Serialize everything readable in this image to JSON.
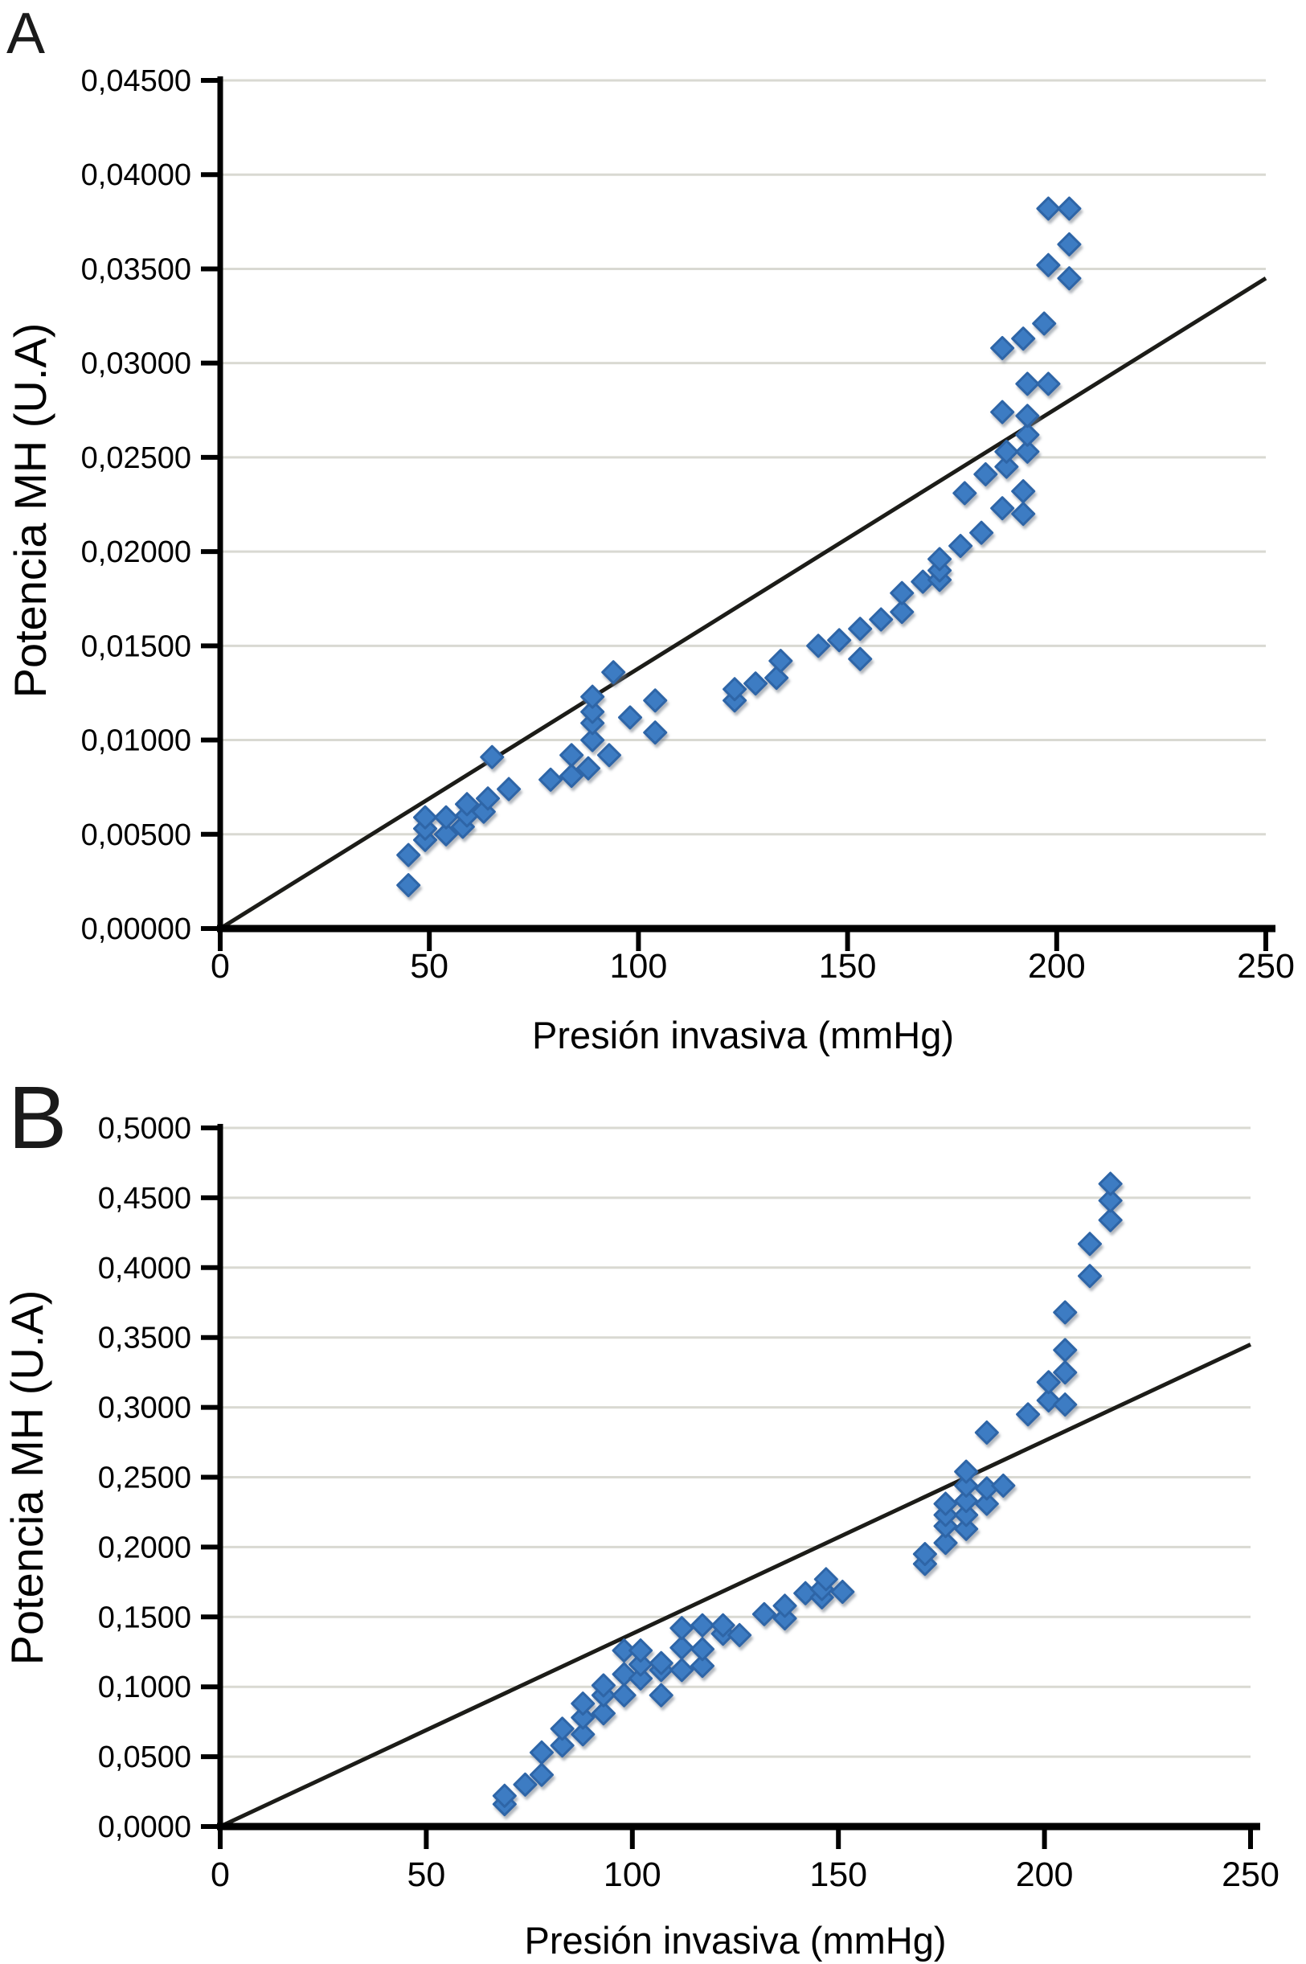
{
  "figure": {
    "background": "#ffffff",
    "panels": [
      {
        "label": "A"
      },
      {
        "label": "B"
      }
    ]
  },
  "chart_data": [
    {
      "type": "scatter",
      "panel": "A",
      "title": "",
      "xlabel": "Presión invasiva (mmHg)",
      "ylabel": "Potencia MH (U.A)",
      "xlim": [
        0,
        250
      ],
      "ylim": [
        0,
        0.045
      ],
      "x_ticks": [
        0,
        50,
        100,
        150,
        200,
        250
      ],
      "x_tick_labels": [
        "0",
        "50",
        "100",
        "150",
        "200",
        "250"
      ],
      "y_ticks": [
        0,
        0.005,
        0.01,
        0.015,
        0.02,
        0.025,
        0.03,
        0.035,
        0.04,
        0.045
      ],
      "y_tick_labels": [
        "0,00000",
        "0,00500",
        "0,01000",
        "0,01500",
        "0,02000",
        "0,02500",
        "0,03000",
        "0,03500",
        "0,04000",
        "0,04500"
      ],
      "grid": true,
      "legend_position": "none",
      "grid_color": "#d9d9d2",
      "axis_color": "#000000",
      "marker": {
        "shape": "diamond",
        "fill": "#3d7cc3",
        "edge": "#2d65a7",
        "shadow": "#707a86"
      },
      "trend_line": {
        "x": [
          0,
          250
        ],
        "y": [
          0,
          0.0345
        ],
        "color": "#1c1c18"
      },
      "points": [
        [
          45,
          0.0023
        ],
        [
          45,
          0.0039
        ],
        [
          49,
          0.0047
        ],
        [
          49,
          0.0053
        ],
        [
          49,
          0.0059
        ],
        [
          54,
          0.005
        ],
        [
          54,
          0.0059
        ],
        [
          58,
          0.0054
        ],
        [
          59,
          0.006
        ],
        [
          59,
          0.0066
        ],
        [
          63,
          0.0062
        ],
        [
          64,
          0.0069
        ],
        [
          65,
          0.0091
        ],
        [
          69,
          0.0074
        ],
        [
          79,
          0.0079
        ],
        [
          84,
          0.0081
        ],
        [
          84,
          0.0092
        ],
        [
          88,
          0.0085
        ],
        [
          89,
          0.01
        ],
        [
          89,
          0.0109
        ],
        [
          89,
          0.0115
        ],
        [
          89,
          0.0123
        ],
        [
          93,
          0.0092
        ],
        [
          94,
          0.0136
        ],
        [
          98,
          0.0112
        ],
        [
          104,
          0.0104
        ],
        [
          104,
          0.0121
        ],
        [
          123,
          0.0121
        ],
        [
          123,
          0.0127
        ],
        [
          128,
          0.013
        ],
        [
          133,
          0.0133
        ],
        [
          134,
          0.0142
        ],
        [
          143,
          0.015
        ],
        [
          148,
          0.0153
        ],
        [
          153,
          0.0143
        ],
        [
          153,
          0.0159
        ],
        [
          158,
          0.0164
        ],
        [
          163,
          0.0168
        ],
        [
          163,
          0.0178
        ],
        [
          168,
          0.0184
        ],
        [
          172,
          0.0185
        ],
        [
          172,
          0.019
        ],
        [
          172,
          0.0196
        ],
        [
          177,
          0.0203
        ],
        [
          178,
          0.0231
        ],
        [
          182,
          0.021
        ],
        [
          183,
          0.0241
        ],
        [
          187,
          0.0223
        ],
        [
          188,
          0.0245
        ],
        [
          188,
          0.0253
        ],
        [
          187,
          0.0274
        ],
        [
          187,
          0.0308
        ],
        [
          192,
          0.022
        ],
        [
          192,
          0.0232
        ],
        [
          193,
          0.0253
        ],
        [
          193,
          0.0262
        ],
        [
          193,
          0.0272
        ],
        [
          193,
          0.0289
        ],
        [
          192,
          0.0313
        ],
        [
          197,
          0.0321
        ],
        [
          198,
          0.0289
        ],
        [
          198,
          0.0352
        ],
        [
          198,
          0.0382
        ],
        [
          203,
          0.0345
        ],
        [
          203,
          0.0363
        ],
        [
          203,
          0.0382
        ]
      ]
    },
    {
      "type": "scatter",
      "panel": "B",
      "title": "",
      "xlabel": "Presión invasiva (mmHg)",
      "ylabel": "Potencia MH (U.A)",
      "xlim": [
        0,
        250
      ],
      "ylim": [
        0,
        0.5
      ],
      "x_ticks": [
        0,
        50,
        100,
        150,
        200,
        250
      ],
      "x_tick_labels": [
        "0",
        "50",
        "100",
        "150",
        "200",
        "250"
      ],
      "y_ticks": [
        0,
        0.05,
        0.1,
        0.15,
        0.2,
        0.25,
        0.3,
        0.35,
        0.4,
        0.45,
        0.5
      ],
      "y_tick_labels": [
        "0,0000",
        "0,0500",
        "0,1000",
        "0,1500",
        "0,2000",
        "0,2500",
        "0,3000",
        "0,3500",
        "0,4000",
        "0,4500",
        "0,5000"
      ],
      "grid": true,
      "legend_position": "none",
      "grid_color": "#d9d9d2",
      "axis_color": "#000000",
      "marker": {
        "shape": "diamond",
        "fill": "#3d7cc3",
        "edge": "#2d65a7",
        "shadow": "#707a86"
      },
      "trend_line": {
        "x": [
          0,
          250
        ],
        "y": [
          0,
          0.345
        ],
        "color": "#1c1c18"
      },
      "points": [
        [
          69,
          0.016
        ],
        [
          69,
          0.022
        ],
        [
          74,
          0.03
        ],
        [
          78,
          0.037
        ],
        [
          78,
          0.053
        ],
        [
          83,
          0.058
        ],
        [
          83,
          0.07
        ],
        [
          88,
          0.066
        ],
        [
          88,
          0.078
        ],
        [
          88,
          0.088
        ],
        [
          93,
          0.081
        ],
        [
          93,
          0.094
        ],
        [
          93,
          0.101
        ],
        [
          98,
          0.094
        ],
        [
          98,
          0.109
        ],
        [
          98,
          0.126
        ],
        [
          102,
          0.106
        ],
        [
          102,
          0.116
        ],
        [
          102,
          0.126
        ],
        [
          107,
          0.094
        ],
        [
          107,
          0.112
        ],
        [
          107,
          0.117
        ],
        [
          112,
          0.112
        ],
        [
          112,
          0.128
        ],
        [
          112,
          0.142
        ],
        [
          117,
          0.115
        ],
        [
          117,
          0.127
        ],
        [
          117,
          0.144
        ],
        [
          122,
          0.138
        ],
        [
          122,
          0.144
        ],
        [
          126,
          0.137
        ],
        [
          132,
          0.152
        ],
        [
          137,
          0.149
        ],
        [
          137,
          0.158
        ],
        [
          142,
          0.167
        ],
        [
          146,
          0.164
        ],
        [
          146,
          0.17
        ],
        [
          147,
          0.177
        ],
        [
          151,
          0.168
        ],
        [
          171,
          0.188
        ],
        [
          171,
          0.195
        ],
        [
          176,
          0.203
        ],
        [
          176,
          0.215
        ],
        [
          176,
          0.223
        ],
        [
          176,
          0.231
        ],
        [
          181,
          0.213
        ],
        [
          181,
          0.223
        ],
        [
          181,
          0.233
        ],
        [
          181,
          0.244
        ],
        [
          181,
          0.254
        ],
        [
          186,
          0.231
        ],
        [
          186,
          0.242
        ],
        [
          186,
          0.282
        ],
        [
          190,
          0.244
        ],
        [
          196,
          0.295
        ],
        [
          201,
          0.305
        ],
        [
          201,
          0.318
        ],
        [
          205,
          0.302
        ],
        [
          205,
          0.325
        ],
        [
          205,
          0.341
        ],
        [
          205,
          0.368
        ],
        [
          211,
          0.394
        ],
        [
          211,
          0.417
        ],
        [
          216,
          0.434
        ],
        [
          216,
          0.448
        ],
        [
          216,
          0.46
        ]
      ]
    }
  ]
}
